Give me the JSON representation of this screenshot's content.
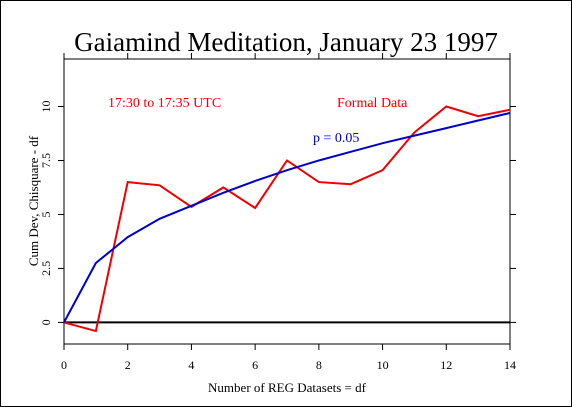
{
  "chart_data": {
    "type": "line",
    "title": "Gaiamind Meditation, January 23 1997",
    "xlabel": "Number of REG Datasets = df",
    "ylabel": "Cum Dev, Chisquare - df",
    "xlim": [
      0,
      14
    ],
    "ylim": [
      -1.0,
      12.2
    ],
    "x_ticks": [
      "0",
      "2",
      "4",
      "6",
      "8",
      "10",
      "12",
      "14"
    ],
    "y_ticks": [
      "0",
      "2.5",
      "5",
      "7.5",
      "10"
    ],
    "grid": false,
    "annotations": {
      "time_window": "17:30 to 17:35 UTC",
      "formal": "Formal Data",
      "pvalue": "p = 0.05"
    },
    "series": [
      {
        "color": "#ee0000",
        "x": [
          0,
          1,
          2,
          3,
          4,
          5,
          6,
          7,
          8,
          9,
          10,
          11,
          12,
          13,
          14
        ],
        "values": [
          0,
          -0.4,
          6.5,
          6.35,
          5.35,
          6.25,
          5.3,
          7.5,
          6.5,
          6.4,
          7.05,
          8.8,
          10.0,
          9.55,
          9.85
        ]
      },
      {
        "color": "#0000cc",
        "x": [
          0,
          1,
          2,
          3,
          4,
          5,
          6,
          7,
          8,
          9,
          10,
          11,
          12,
          13,
          14
        ],
        "values": [
          0,
          2.75,
          3.95,
          4.8,
          5.4,
          6.0,
          6.55,
          7.05,
          7.5,
          7.9,
          8.3,
          8.65,
          9.0,
          9.35,
          9.7
        ]
      }
    ],
    "zero_line_color": "#000000"
  }
}
